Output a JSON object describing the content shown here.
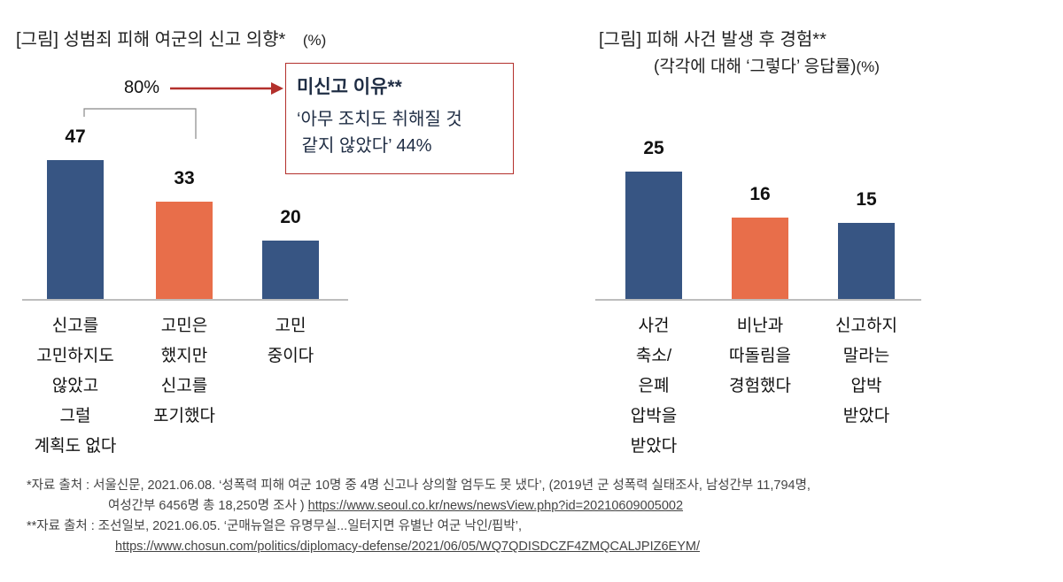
{
  "colors": {
    "blue": "#375583",
    "orange": "#E86E4A",
    "annotation": "#B3302C"
  },
  "chart_data": [
    {
      "type": "bar",
      "title": "[그림] 성범죄 피해 여군의 신고 의향*",
      "unit": "(%)",
      "categories": [
        "신고를\n고민하지도\n않았고\n그럴\n계획도 없다",
        "고민은\n했지만\n신고를\n포기했다",
        "고민\n중이다"
      ],
      "values": [
        47,
        33,
        20
      ],
      "value_labels": [
        "47",
        "33",
        "20"
      ],
      "highlight": [
        false,
        true,
        false
      ],
      "bracket_label": "80%",
      "callout": {
        "title": "미신고 이유**",
        "text_line1": "‘아무 조치도 취해질 것",
        "text_line2": " 같지 않았다’ 44%"
      }
    },
    {
      "type": "bar",
      "title": "[그림] 피해 사건 발생 후 경험**",
      "subtitle": "(각각에 대해 ‘그렇다’ 응답률)",
      "unit": "(%)",
      "categories": [
        "사건\n축소/\n은폐\n압박을\n받았다",
        "비난과\n따돌림을\n경험했다",
        "신고하지\n말라는\n압박\n받았다"
      ],
      "values": [
        25,
        16,
        15
      ],
      "value_labels": [
        "25",
        "16",
        "15"
      ],
      "highlight": [
        false,
        true,
        false
      ]
    }
  ],
  "footnotes": {
    "f1_line1": "*자료 출처 : 서울신문, 2021.06.08. ‘성폭력 피해 여군 10명 중 4명 신고나 상의할 엄두도 못 냈다’, (2019년 군 성폭력 실태조사, 남성간부 11,794명,",
    "f1_line2": "여성간부 6456명 총 18,250명 조사 ) ",
    "f1_link": "https://www.seoul.co.kr/news/newsView.php?id=20210609005002",
    "f2_line1": "**자료 출처 : 조선일보, 2021.06.05. ‘군매뉴얼은 유명무실...일터지면 유별난 여군 낙인/핍박’,",
    "f2_link": "https://www.chosun.com/politics/diplomacy-defense/2021/06/05/WQ7QDISDCZF4ZMQCALJPIZ6EYM/"
  }
}
